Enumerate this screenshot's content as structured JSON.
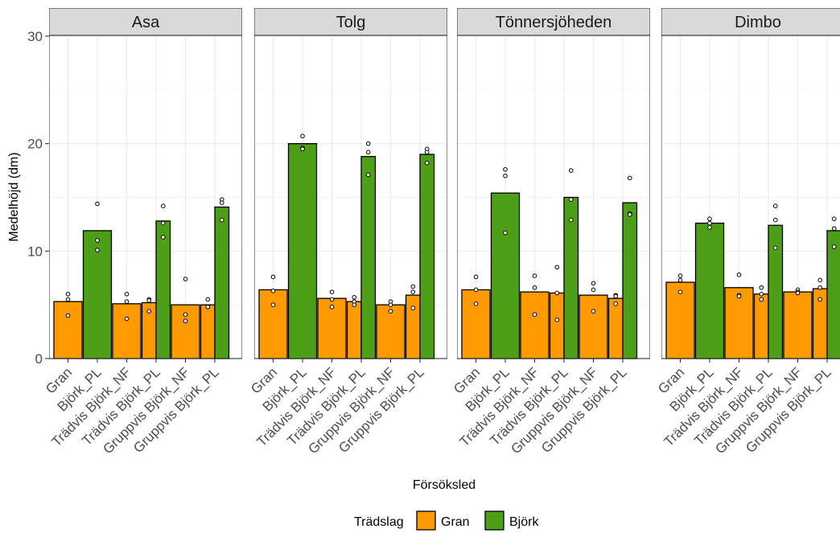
{
  "chart_data": {
    "type": "bar",
    "xlabel": "Försöksled",
    "ylabel": "Medelhöjd (dm)",
    "ylim": [
      0,
      30
    ],
    "yticks": [
      0,
      10,
      20,
      30
    ],
    "grid": true,
    "legend_position": "bottom",
    "legend": {
      "title": "Trädslag",
      "entries": [
        {
          "name": "Gran",
          "color": "#ff9900"
        },
        {
          "name": "Björk",
          "color": "#4c9f16"
        }
      ]
    },
    "categories": [
      "Gran",
      "Björk_PL",
      "Trädvis Björk_NF",
      "Trädvis Björk_PL",
      "Gruppvis Björk_NF",
      "Gruppvis Björk_PL"
    ],
    "category_tradslag": [
      "Gran",
      "Björk",
      "Gran",
      "Björk",
      "Gran",
      "Björk"
    ],
    "colors": {
      "Gran": "#ff9900",
      "Björk": "#4c9f16"
    },
    "panels": [
      {
        "name": "Asa",
        "bars": [
          {
            "category": "Gran",
            "tradslag": "Gran",
            "value": 5.3,
            "points": [
              6.0,
              5.5,
              4.0
            ]
          },
          {
            "category": "Björk_PL",
            "tradslag": "Björk",
            "value": 11.9,
            "points": [
              14.4,
              11.0,
              10.1
            ]
          },
          {
            "category": "Trädvis Björk_NF",
            "tradslag": "Gran",
            "value": 5.1,
            "points": [
              6.0,
              5.3,
              3.7
            ]
          },
          {
            "category": "Trädvis Björk_PL",
            "tradslag": "Gran",
            "value": 5.2,
            "points": [
              5.5,
              5.4,
              4.4
            ]
          },
          {
            "category": "Trädvis Björk_PL",
            "tradslag": "Björk",
            "value": 12.8,
            "points": [
              14.2,
              12.6,
              11.3
            ]
          },
          {
            "category": "Gruppvis Björk_NF",
            "tradslag": "Gran",
            "value": 5.0,
            "points": [
              7.4,
              4.1,
              3.5
            ]
          },
          {
            "category": "Gruppvis Björk_PL",
            "tradslag": "Gran",
            "value": 5.0,
            "points": [
              5.5,
              4.8,
              4.8
            ]
          },
          {
            "category": "Gruppvis Björk_PL",
            "tradslag": "Björk",
            "value": 14.1,
            "points": [
              14.8,
              14.5,
              12.9
            ]
          }
        ]
      },
      {
        "name": "Tolg",
        "bars": [
          {
            "category": "Gran",
            "tradslag": "Gran",
            "value": 6.4,
            "points": [
              7.6,
              6.3,
              5.0
            ]
          },
          {
            "category": "Björk_PL",
            "tradslag": "Björk",
            "value": 20.0,
            "points": [
              20.7,
              19.6,
              19.5
            ]
          },
          {
            "category": "Trädvis Björk_NF",
            "tradslag": "Gran",
            "value": 5.6,
            "points": [
              6.2,
              5.5,
              4.8
            ]
          },
          {
            "category": "Trädvis Björk_PL",
            "tradslag": "Gran",
            "value": 5.3,
            "points": [
              5.7,
              5.3,
              5.0
            ]
          },
          {
            "category": "Trädvis Björk_PL",
            "tradslag": "Björk",
            "value": 18.8,
            "points": [
              20.0,
              19.2,
              17.1
            ]
          },
          {
            "category": "Gruppvis Björk_NF",
            "tradslag": "Gran",
            "value": 5.0,
            "points": [
              5.3,
              5.0,
              4.4
            ]
          },
          {
            "category": "Gruppvis Björk_PL",
            "tradslag": "Gran",
            "value": 5.9,
            "points": [
              6.7,
              6.2,
              4.7
            ]
          },
          {
            "category": "Gruppvis Björk_PL",
            "tradslag": "Björk",
            "value": 19.0,
            "points": [
              19.5,
              19.2,
              18.2
            ]
          }
        ]
      },
      {
        "name": "Tönnersjöheden",
        "bars": [
          {
            "category": "Gran",
            "tradslag": "Gran",
            "value": 6.4,
            "points": [
              7.6,
              6.4,
              5.1
            ]
          },
          {
            "category": "Björk_PL",
            "tradslag": "Björk",
            "value": 15.4,
            "points": [
              17.6,
              17.0,
              11.7
            ]
          },
          {
            "category": "Trädvis Björk_NF",
            "tradslag": "Gran",
            "value": 6.2,
            "points": [
              7.7,
              6.6,
              4.1
            ]
          },
          {
            "category": "Trädvis Björk_PL",
            "tradslag": "Gran",
            "value": 6.1,
            "points": [
              8.5,
              6.1,
              3.6
            ]
          },
          {
            "category": "Trädvis Björk_PL",
            "tradslag": "Björk",
            "value": 15.0,
            "points": [
              17.5,
              14.8,
              12.9
            ]
          },
          {
            "category": "Gruppvis Björk_NF",
            "tradslag": "Gran",
            "value": 5.9,
            "points": [
              7.0,
              6.4,
              4.4
            ]
          },
          {
            "category": "Gruppvis Björk_PL",
            "tradslag": "Gran",
            "value": 5.6,
            "points": [
              5.9,
              5.8,
              5.1
            ]
          },
          {
            "category": "Gruppvis Björk_PL",
            "tradslag": "Björk",
            "value": 14.5,
            "points": [
              16.8,
              13.5,
              13.4
            ]
          }
        ]
      },
      {
        "name": "Dimbo",
        "bars": [
          {
            "category": "Gran",
            "tradslag": "Gran",
            "value": 7.1,
            "points": [
              7.7,
              7.3,
              6.2
            ]
          },
          {
            "category": "Björk_PL",
            "tradslag": "Björk",
            "value": 12.6,
            "points": [
              13.0,
              12.6,
              12.2
            ]
          },
          {
            "category": "Trädvis Björk_NF",
            "tradslag": "Gran",
            "value": 6.6,
            "points": [
              7.8,
              5.9,
              5.8
            ]
          },
          {
            "category": "Trädvis Björk_PL",
            "tradslag": "Gran",
            "value": 6.0,
            "points": [
              6.6,
              6.0,
              5.5
            ]
          },
          {
            "category": "Trädvis Björk_PL",
            "tradslag": "Björk",
            "value": 12.4,
            "points": [
              14.2,
              12.9,
              10.3
            ]
          },
          {
            "category": "Gruppvis Björk_NF",
            "tradslag": "Gran",
            "value": 6.2,
            "points": [
              6.4,
              6.2,
              6.1
            ]
          },
          {
            "category": "Gruppvis Björk_PL",
            "tradslag": "Gran",
            "value": 6.5,
            "points": [
              7.3,
              6.6,
              5.5
            ]
          },
          {
            "category": "Gruppvis Björk_PL",
            "tradslag": "Björk",
            "value": 11.9,
            "points": [
              13.0,
              12.1,
              10.4
            ]
          }
        ]
      }
    ]
  }
}
